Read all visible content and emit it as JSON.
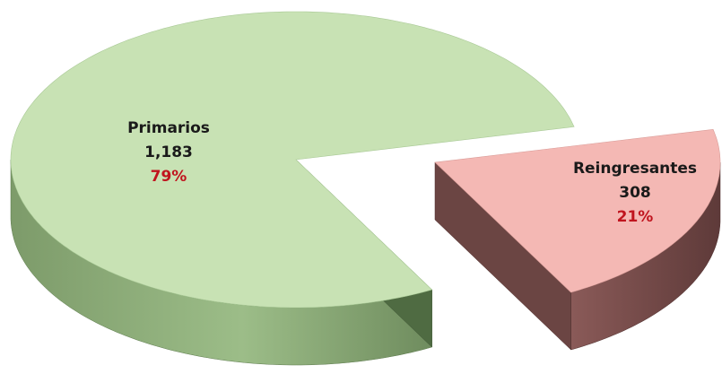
{
  "chart_data": {
    "type": "pie",
    "style": "3d-exploded",
    "slices": [
      {
        "label": "Primarios",
        "value": 1183,
        "value_label": "1,183",
        "percent_label": "79%",
        "color": "#c8e2b4"
      },
      {
        "label": "Reingresantes",
        "value": 308,
        "value_label": "308",
        "percent_label": "21%",
        "color": "#f4b8b4"
      }
    ],
    "percent_color": "#c0141e",
    "legend": "none"
  }
}
